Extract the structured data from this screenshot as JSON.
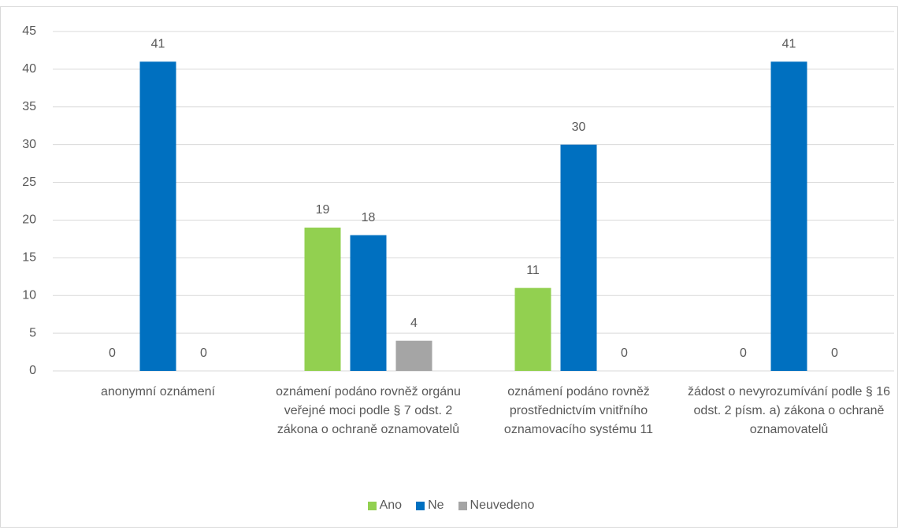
{
  "chart_data": {
    "type": "bar",
    "categories": [
      "anonymní oznámení",
      "oznámení podáno rovněž orgánu veřejné moci podle § 7 odst. 2 zákona o ochraně oznamovatelů",
      "oznámení podáno rovněž prostřednictvím vnitřního oznamovacího systému 11",
      "žádost o nevyrozumívání podle § 16 odst. 2 písm. a) zákona o ochraně oznamovatelů"
    ],
    "series": [
      {
        "name": "Ano",
        "color": "#92d050",
        "values": [
          0,
          19,
          11,
          0
        ]
      },
      {
        "name": "Ne",
        "color": "#0070c0",
        "values": [
          41,
          18,
          30,
          41
        ]
      },
      {
        "name": "Neuvedeno",
        "color": "#a5a5a5",
        "values": [
          0,
          4,
          0,
          0
        ]
      }
    ],
    "ylim": [
      0,
      45
    ],
    "yticks": [
      0,
      5,
      10,
      15,
      20,
      25,
      30,
      35,
      40,
      45
    ],
    "grid": true,
    "legend": "bottom"
  }
}
